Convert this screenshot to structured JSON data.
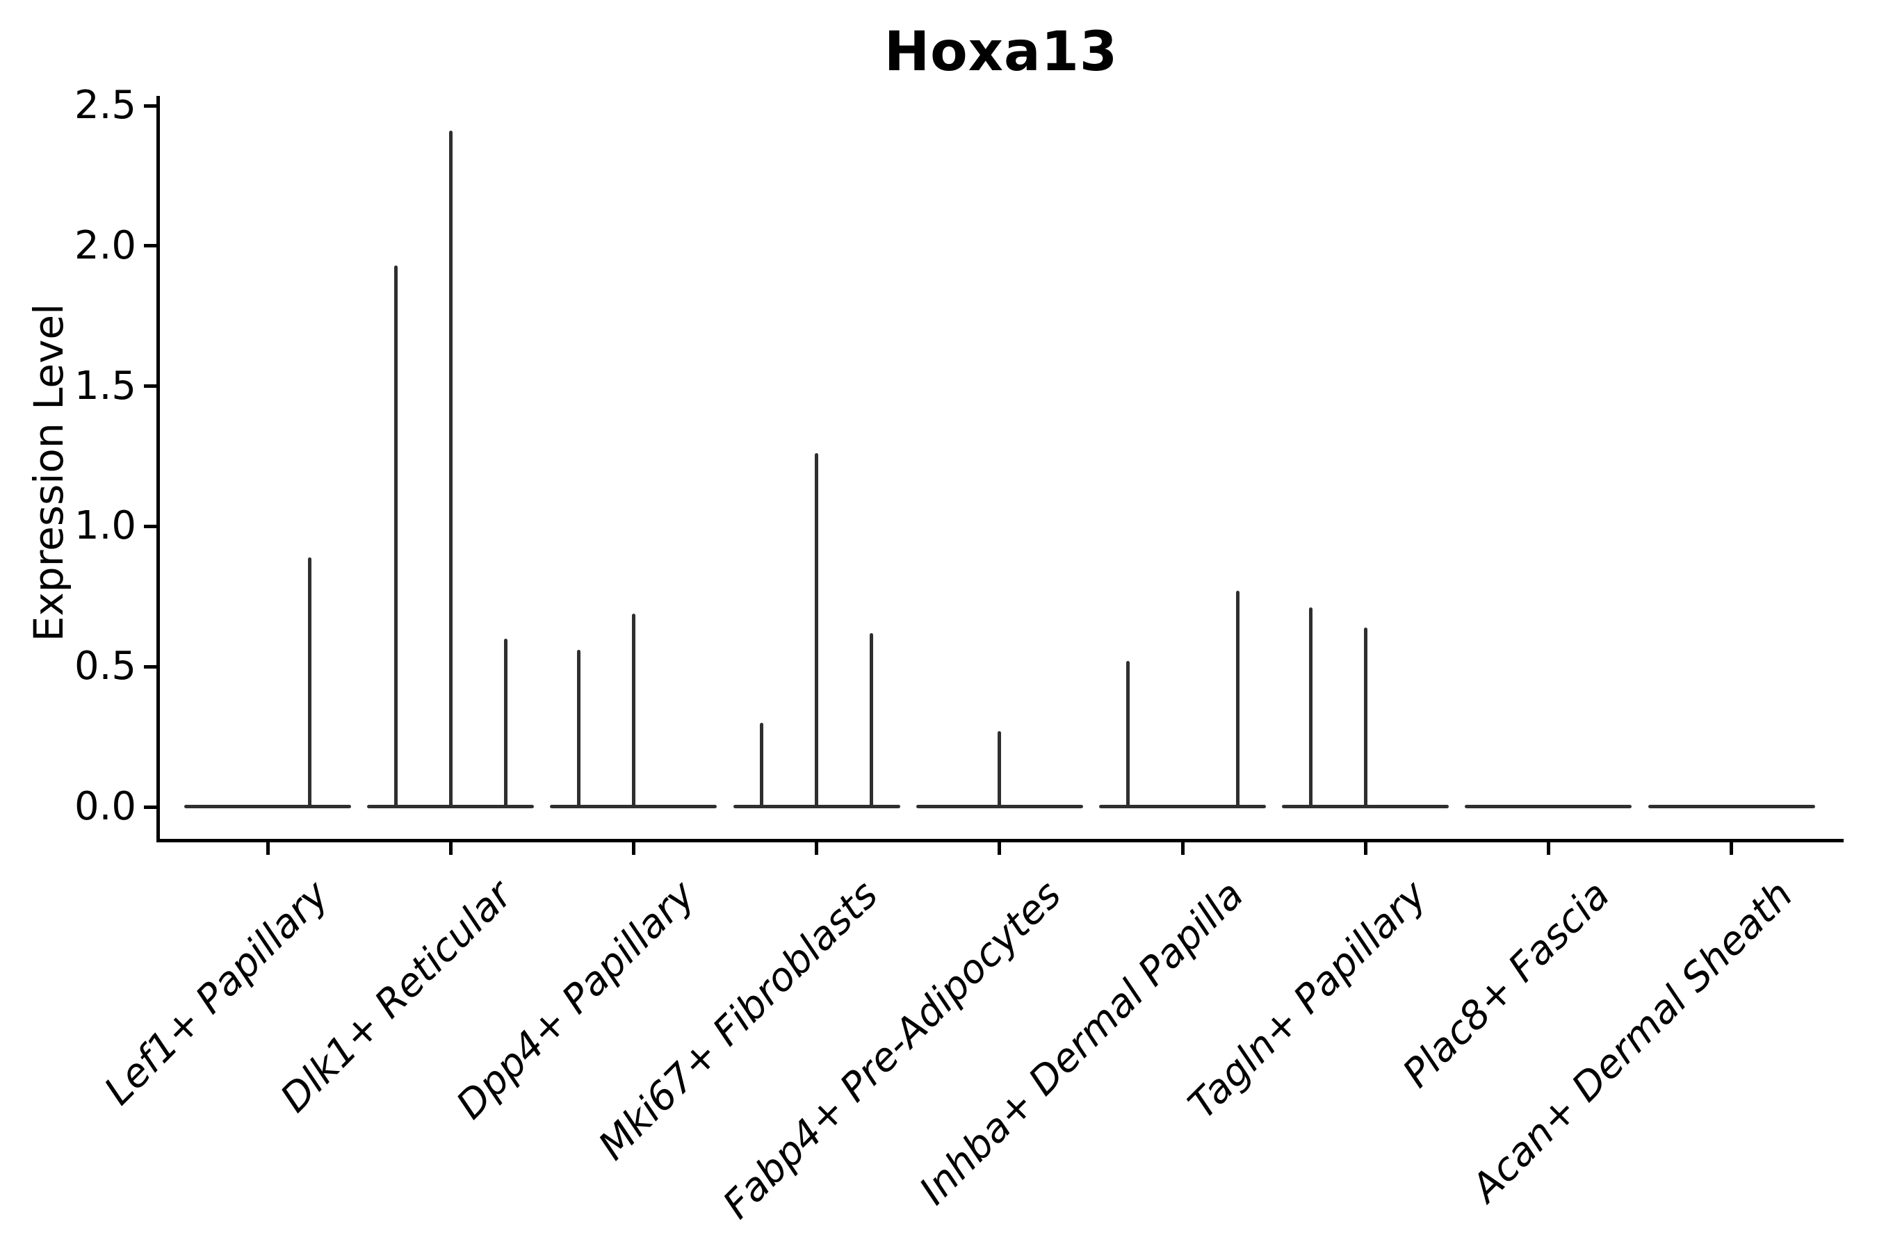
{
  "title": "Hoxa13",
  "y_axis": {
    "label": "Expression Level",
    "ticks": [
      {
        "label": "0.0",
        "value": 0.0
      },
      {
        "label": "0.5",
        "value": 0.5
      },
      {
        "label": "1.0",
        "value": 1.0
      },
      {
        "label": "1.5",
        "value": 1.5
      },
      {
        "label": "2.0",
        "value": 2.0
      },
      {
        "label": "2.5",
        "value": 2.5
      }
    ]
  },
  "colors": {
    "ink": "#000000",
    "violin": "#2f2f2f",
    "background": "#ffffff"
  },
  "chart_data": {
    "type": "violin",
    "title": "Hoxa13",
    "xlabel": "",
    "ylabel": "Expression Level",
    "ylim": [
      0,
      2.5
    ],
    "grid": false,
    "legend": "none",
    "description": "Single-cell gene expression violin plot; each cell type shows a flat violin bulk at 0 expression plus thin spikes at expressed values (spike offset = sub-violin position within category).",
    "categories": [
      {
        "label": "Lef1+ Papillary",
        "zero_bulk": true,
        "spikes": [
          {
            "dx": 60,
            "value": 0.89
          }
        ]
      },
      {
        "label": "Dlk1+ Reticular",
        "zero_bulk": true,
        "spikes": [
          {
            "dx": -79,
            "value": 1.93
          },
          {
            "dx": 0,
            "value": 2.41
          },
          {
            "dx": 79,
            "value": 0.6
          }
        ]
      },
      {
        "label": "Dpp4+ Papillary",
        "zero_bulk": true,
        "spikes": [
          {
            "dx": -79,
            "value": 0.56
          },
          {
            "dx": 0,
            "value": 0.69
          }
        ]
      },
      {
        "label": "Mki67+ Fibroblasts",
        "zero_bulk": true,
        "spikes": [
          {
            "dx": -79,
            "value": 0.3
          },
          {
            "dx": 0,
            "value": 1.26
          },
          {
            "dx": 79,
            "value": 0.62
          }
        ]
      },
      {
        "label": "Fabp4+ Pre-Adipocytes",
        "zero_bulk": true,
        "spikes": [
          {
            "dx": 0,
            "value": 0.27
          }
        ]
      },
      {
        "label": "Inhba+ Dermal Papilla",
        "zero_bulk": true,
        "spikes": [
          {
            "dx": -79,
            "value": 0.52
          },
          {
            "dx": 79,
            "value": 0.77
          }
        ]
      },
      {
        "label": "Tagln+ Papillary",
        "zero_bulk": true,
        "spikes": [
          {
            "dx": -79,
            "value": 0.71
          },
          {
            "dx": 0,
            "value": 0.64
          }
        ]
      },
      {
        "label": "Plac8+ Fascia",
        "zero_bulk": true,
        "spikes": []
      },
      {
        "label": "Acan+ Dermal Sheath",
        "zero_bulk": true,
        "spikes": []
      }
    ]
  }
}
